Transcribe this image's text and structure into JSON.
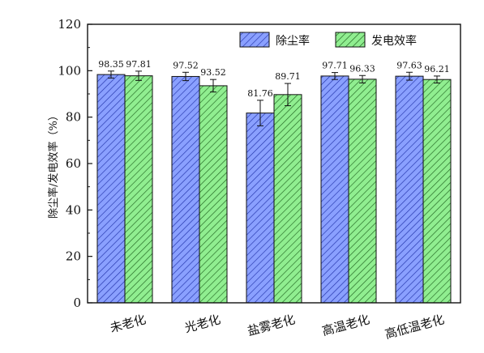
{
  "chart_data": {
    "type": "bar",
    "categories": [
      "未老化",
      "光老化",
      "盐雾老化",
      "高温老化",
      "高低温老化"
    ],
    "series": [
      {
        "name": "除尘率",
        "values": [
          98.35,
          97.52,
          81.76,
          97.71,
          97.63
        ],
        "errors": [
          1.5,
          1.8,
          5.5,
          1.5,
          1.7
        ],
        "labels": [
          "98.35",
          "97.52",
          "81.76",
          "97.71",
          "97.63"
        ],
        "color": "#8aa0ff",
        "hatch_color": "#2233aa"
      },
      {
        "name": "发电效率",
        "values": [
          97.81,
          93.52,
          89.71,
          96.33,
          96.21
        ],
        "errors": [
          2.0,
          2.7,
          4.8,
          1.6,
          1.5
        ],
        "labels": [
          "97.81",
          "93.52",
          "89.71",
          "96.33",
          "96.21"
        ],
        "color": "#90ee90",
        "hatch_color": "#226622"
      }
    ],
    "title": "",
    "xlabel": "",
    "ylabel": "除尘率/发电效率（%）",
    "ylim": [
      0,
      120
    ],
    "yticks": [
      "0",
      "20",
      "40",
      "60",
      "80",
      "100",
      "120"
    ],
    "grid": false,
    "legend_position": "top-right"
  }
}
